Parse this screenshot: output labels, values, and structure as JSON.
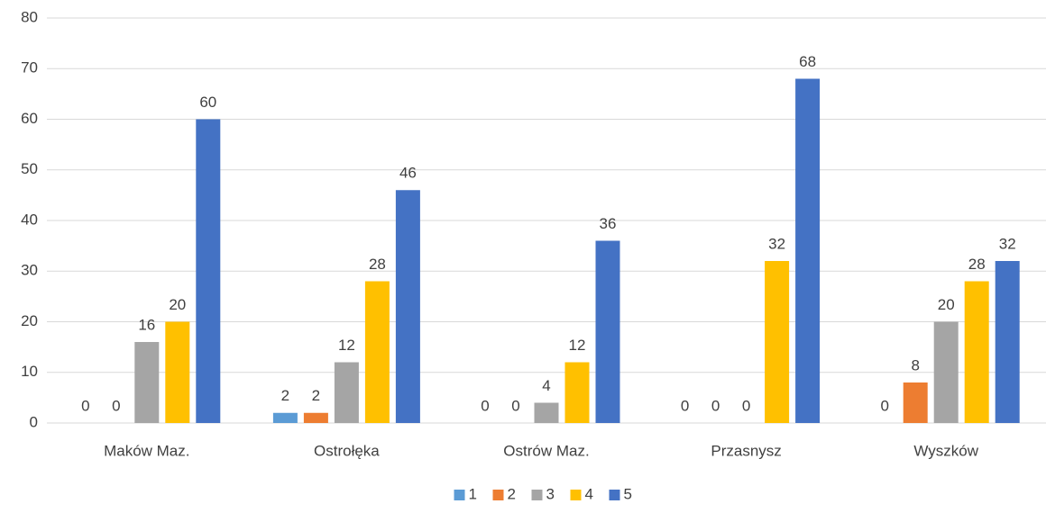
{
  "chart_data": {
    "type": "bar",
    "categories": [
      "Maków Maz.",
      "Ostrołęka",
      "Ostrów Maz.",
      "Przasnysz",
      "Wyszków"
    ],
    "series": [
      {
        "name": "1",
        "color": "#5b9bd5",
        "values": [
          0,
          2,
          0,
          0,
          0
        ]
      },
      {
        "name": "2",
        "color": "#ed7d31",
        "values": [
          0,
          2,
          0,
          0,
          8
        ]
      },
      {
        "name": "3",
        "color": "#a5a5a5",
        "values": [
          16,
          12,
          4,
          0,
          20
        ]
      },
      {
        "name": "4",
        "color": "#ffc000",
        "values": [
          20,
          28,
          12,
          32,
          28
        ]
      },
      {
        "name": "5",
        "color": "#4472c4",
        "values": [
          60,
          46,
          36,
          68,
          32
        ]
      }
    ],
    "ylim": [
      0,
      80
    ],
    "yticks": [
      0,
      10,
      20,
      30,
      40,
      50,
      60,
      70,
      80
    ],
    "grid": true,
    "legend": "bottom"
  }
}
